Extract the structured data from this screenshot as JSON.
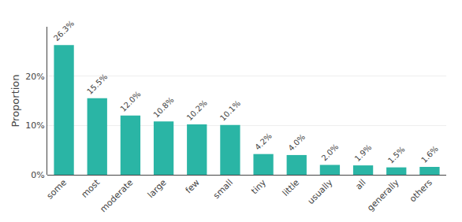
{
  "chart_data": {
    "type": "bar",
    "categories": [
      "some",
      "most",
      "moderate",
      "large",
      "few",
      "small",
      "tiny",
      "little",
      "usually",
      "all",
      "generally",
      "others"
    ],
    "values": [
      26.3,
      15.5,
      12.0,
      10.8,
      10.2,
      10.1,
      4.2,
      4.0,
      2.0,
      1.9,
      1.5,
      1.6
    ],
    "value_labels": [
      "26.3%",
      "15.5%",
      "12.0%",
      "10.8%",
      "10.2%",
      "10.1%",
      "4.2%",
      "4.0%",
      "2.0%",
      "1.9%",
      "1.5%",
      "1.6%"
    ],
    "data_labels": true,
    "color": "#2ab5a5",
    "ylabel": "Proportion",
    "ylim": [
      0,
      30
    ],
    "yticks": [
      {
        "value": 0,
        "label": "0%"
      },
      {
        "value": 10,
        "label": "10%"
      },
      {
        "value": 20,
        "label": "20%"
      }
    ],
    "grid": true
  }
}
